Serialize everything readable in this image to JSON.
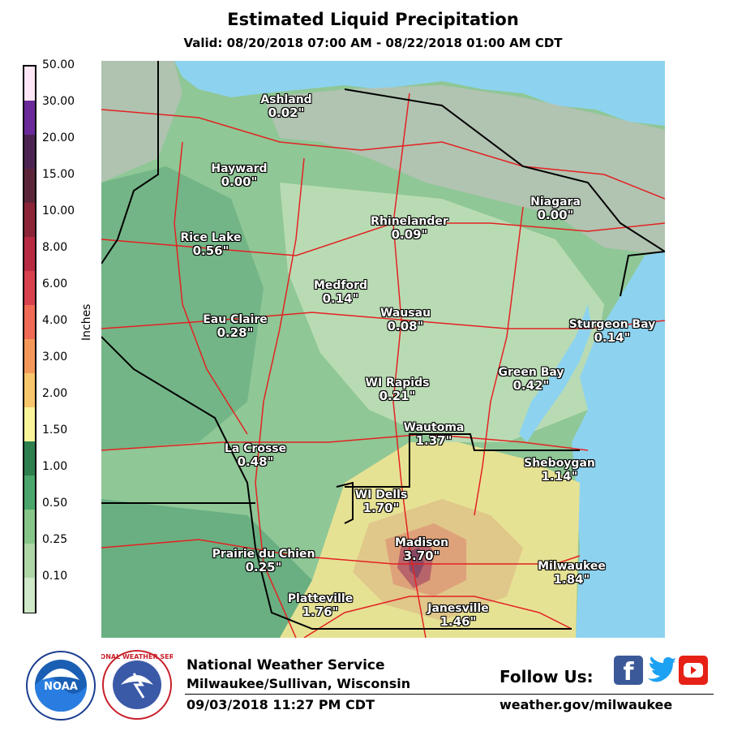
{
  "header": {
    "title": "Estimated Liquid Precipitation",
    "subtitle": "Valid: 08/20/2018 07:00 AM - 08/22/2018 01:00 AM CDT"
  },
  "legend": {
    "title": "Inches",
    "labels": [
      "50.00",
      "30.00",
      "20.00",
      "15.00",
      "10.00",
      "8.00",
      "6.00",
      "4.00",
      "3.00",
      "2.00",
      "1.50",
      "1.00",
      "0.50",
      "0.25",
      "0.10"
    ],
    "colors": [
      "#fde6f5",
      "#6b2a9a",
      "#4b2452",
      "#5c2438",
      "#8c2437",
      "#b82a42",
      "#d8414d",
      "#f06a55",
      "#f49859",
      "#f8c66b",
      "#fbf59a",
      "#2d7f4e",
      "#4aa66a",
      "#86c688",
      "#aed7a6",
      "#cfe8c7"
    ]
  },
  "map": {
    "colors": {
      "water": "#8dd3ef",
      "light_green": "#b9dbb4",
      "green": "#8fc796",
      "dark_green": "#6aaf82",
      "gray": "#b7c2b6",
      "yellow": "#e6e294",
      "tan": "#e0c78a",
      "orange": "#dea27a",
      "red": "#b8646a",
      "purple": "#8a4a66",
      "roads": "#e32222",
      "state_line": "#000000"
    },
    "cities": [
      {
        "name": "Ashland",
        "value": "0.02\""
      },
      {
        "name": "Hayward",
        "value": "0.00\""
      },
      {
        "name": "Rice Lake",
        "value": "0.56\""
      },
      {
        "name": "Rhinelander",
        "value": "0.09\""
      },
      {
        "name": "Niagara",
        "value": "0.00\""
      },
      {
        "name": "Medford",
        "value": "0.14\""
      },
      {
        "name": "Eau Claire",
        "value": "0.28\""
      },
      {
        "name": "Wausau",
        "value": "0.08\""
      },
      {
        "name": "Sturgeon Bay",
        "value": "0.14\""
      },
      {
        "name": "Green Bay",
        "value": "0.42\""
      },
      {
        "name": "WI Rapids",
        "value": "0.21\""
      },
      {
        "name": "Wautoma",
        "value": "1.37\""
      },
      {
        "name": "La Crosse",
        "value": "0.48\""
      },
      {
        "name": "Sheboygan",
        "value": "1.14\""
      },
      {
        "name": "WI Dells",
        "value": "1.70\""
      },
      {
        "name": "Madison",
        "value": "3.70\""
      },
      {
        "name": "Prairie du Chien",
        "value": "0.25\""
      },
      {
        "name": "Milwaukee",
        "value": "1.84\""
      },
      {
        "name": "Platteville",
        "value": "1.76\""
      },
      {
        "name": "Janesville",
        "value": "1.46\""
      }
    ]
  },
  "footer": {
    "org": "National Weather Service",
    "office": "Milwaukee/Sullivan, Wisconsin",
    "issued": "09/03/2018 11:27 PM CDT",
    "follow": "Follow Us:",
    "url": "weather.gov/milwaukee",
    "noaa_logo_text": "NOAA",
    "nws_logo_text": "NATIONAL WEATHER SERVICE",
    "social": [
      "facebook-icon",
      "twitter-icon",
      "youtube-icon"
    ]
  }
}
